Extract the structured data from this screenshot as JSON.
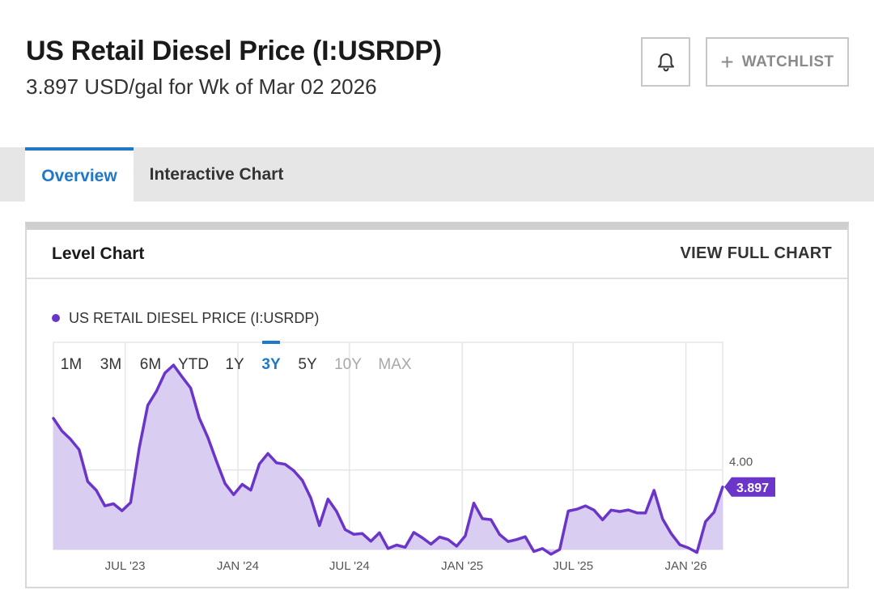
{
  "header": {
    "title": "US Retail Diesel Price (I:USRDP)",
    "subtitle": "3.897 USD/gal for Wk of Mar 02 2026",
    "alert_icon": "bell-icon",
    "watchlist_label": "WATCHLIST",
    "watchlist_icon": "plus-icon"
  },
  "tabs": [
    {
      "label": "Overview",
      "active": true
    },
    {
      "label": "Interactive Chart",
      "active": false
    }
  ],
  "card": {
    "title": "Level Chart",
    "link_label": "VIEW FULL CHART"
  },
  "range_buttons": [
    {
      "label": "1M",
      "state": "enabled"
    },
    {
      "label": "3M",
      "state": "enabled"
    },
    {
      "label": "6M",
      "state": "enabled"
    },
    {
      "label": "YTD",
      "state": "enabled"
    },
    {
      "label": "1Y",
      "state": "enabled"
    },
    {
      "label": "3Y",
      "state": "selected"
    },
    {
      "label": "5Y",
      "state": "enabled"
    },
    {
      "label": "10Y",
      "state": "disabled"
    },
    {
      "label": "MAX",
      "state": "disabled"
    }
  ],
  "colors": {
    "series_line": "#6a35c8",
    "series_fill": "#d9cdf2",
    "accent_blue": "#1f78c8",
    "grid": "#e6e6e6"
  },
  "chart_data": {
    "type": "area",
    "title": "",
    "xlabel": "",
    "ylabel": "",
    "ylim": [
      3.52,
      4.77
    ],
    "grid": true,
    "legend_position": "top-left",
    "y_ticks": [
      {
        "value": 4.0,
        "label": "4.00"
      }
    ],
    "x_ticks": [
      {
        "date": "2023-07-01",
        "label": "JUL '23"
      },
      {
        "date": "2024-01-01",
        "label": "JAN '24"
      },
      {
        "date": "2024-07-01",
        "label": "JUL '24"
      },
      {
        "date": "2025-01-01",
        "label": "JAN '25"
      },
      {
        "date": "2025-07-01",
        "label": "JUL '25"
      },
      {
        "date": "2026-01-01",
        "label": "JAN '26"
      }
    ],
    "last_value_label": "3.897",
    "series": [
      {
        "name": "US RETAIL DIESEL PRICE (I:USRDP)",
        "points": [
          [
            "2023-03-06",
            4.311
          ],
          [
            "2023-03-20",
            4.235
          ],
          [
            "2023-04-03",
            4.185
          ],
          [
            "2023-04-17",
            4.122
          ],
          [
            "2023-05-01",
            3.93
          ],
          [
            "2023-05-15",
            3.877
          ],
          [
            "2023-05-29",
            3.783
          ],
          [
            "2023-06-12",
            3.796
          ],
          [
            "2023-06-26",
            3.754
          ],
          [
            "2023-07-10",
            3.803
          ],
          [
            "2023-07-24",
            4.131
          ],
          [
            "2023-08-07",
            4.39
          ],
          [
            "2023-08-21",
            4.474
          ],
          [
            "2023-09-04",
            4.585
          ],
          [
            "2023-09-18",
            4.633
          ],
          [
            "2023-10-02",
            4.562
          ],
          [
            "2023-10-16",
            4.494
          ],
          [
            "2023-10-30",
            4.313
          ],
          [
            "2023-11-13",
            4.197
          ],
          [
            "2023-11-27",
            4.054
          ],
          [
            "2023-12-11",
            3.918
          ],
          [
            "2023-12-25",
            3.851
          ],
          [
            "2024-01-08",
            3.913
          ],
          [
            "2024-01-22",
            3.878
          ],
          [
            "2024-02-05",
            4.036
          ],
          [
            "2024-02-19",
            4.099
          ],
          [
            "2024-03-04",
            4.043
          ],
          [
            "2024-03-18",
            4.034
          ],
          [
            "2024-04-01",
            3.996
          ],
          [
            "2024-04-15",
            3.938
          ],
          [
            "2024-04-29",
            3.83
          ],
          [
            "2024-05-13",
            3.664
          ],
          [
            "2024-05-27",
            3.824
          ],
          [
            "2024-06-10",
            3.75
          ],
          [
            "2024-06-24",
            3.64
          ],
          [
            "2024-07-08",
            3.612
          ],
          [
            "2024-07-22",
            3.616
          ],
          [
            "2024-08-05",
            3.57
          ],
          [
            "2024-08-19",
            3.621
          ],
          [
            "2024-09-02",
            3.526
          ],
          [
            "2024-09-16",
            3.547
          ],
          [
            "2024-09-30",
            3.533
          ],
          [
            "2024-10-14",
            3.623
          ],
          [
            "2024-10-28",
            3.591
          ],
          [
            "2024-11-11",
            3.552
          ],
          [
            "2024-11-25",
            3.595
          ],
          [
            "2024-12-09",
            3.58
          ],
          [
            "2024-12-23",
            3.54
          ],
          [
            "2025-01-06",
            3.602
          ],
          [
            "2025-01-20",
            3.8
          ],
          [
            "2025-02-03",
            3.706
          ],
          [
            "2025-02-17",
            3.7
          ],
          [
            "2025-03-03",
            3.611
          ],
          [
            "2025-03-17",
            3.568
          ],
          [
            "2025-03-31",
            3.58
          ],
          [
            "2025-04-14",
            3.597
          ],
          [
            "2025-04-28",
            3.508
          ],
          [
            "2025-05-12",
            3.526
          ],
          [
            "2025-05-26",
            3.491
          ],
          [
            "2025-06-09",
            3.52
          ],
          [
            "2025-06-23",
            3.752
          ],
          [
            "2025-07-07",
            3.763
          ],
          [
            "2025-07-21",
            3.783
          ],
          [
            "2025-08-04",
            3.758
          ],
          [
            "2025-08-18",
            3.699
          ],
          [
            "2025-09-01",
            3.758
          ],
          [
            "2025-09-15",
            3.749
          ],
          [
            "2025-09-29",
            3.759
          ],
          [
            "2025-10-13",
            3.741
          ],
          [
            "2025-10-27",
            3.74
          ],
          [
            "2025-11-10",
            3.877
          ],
          [
            "2025-11-24",
            3.704
          ],
          [
            "2025-12-08",
            3.616
          ],
          [
            "2025-12-22",
            3.549
          ],
          [
            "2026-01-05",
            3.53
          ],
          [
            "2026-01-19",
            3.502
          ],
          [
            "2026-02-02",
            3.688
          ],
          [
            "2026-02-16",
            3.745
          ],
          [
            "2026-03-02",
            3.897
          ]
        ]
      }
    ]
  }
}
